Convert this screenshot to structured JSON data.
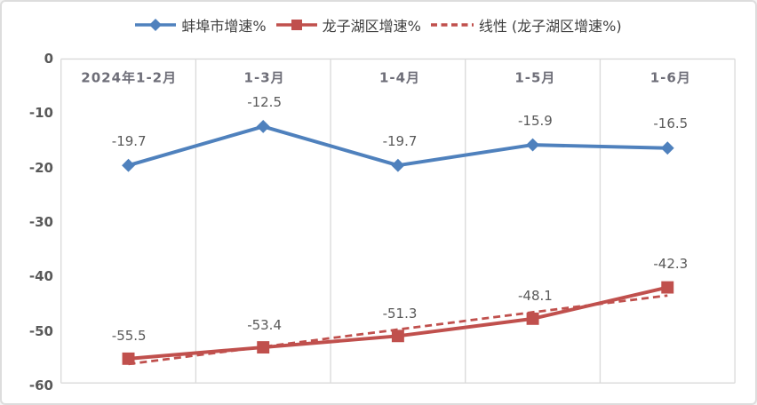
{
  "chart_data": {
    "type": "line",
    "title": "",
    "categories": [
      "2024年1-2月",
      "1-3月",
      "1-4月",
      "1-5月",
      "1-6月"
    ],
    "series": [
      {
        "name": "蚌埠市增速%",
        "color": "#4f81bd",
        "marker": "diamond",
        "values": [
          -19.7,
          -12.5,
          -19.7,
          -15.9,
          -16.5
        ]
      },
      {
        "name": "龙子湖区增速%",
        "color": "#c0504d",
        "marker": "square",
        "values": [
          -55.5,
          -53.4,
          -51.3,
          -48.1,
          -42.3
        ]
      }
    ],
    "trendline": {
      "name": "线性 (龙子湖区增速%)",
      "color": "#c0504d",
      "style": "dashed",
      "basis_series": "龙子湖区增速%",
      "values": [
        -56.5,
        -53.3,
        -50.1,
        -46.9,
        -43.8
      ]
    },
    "y_axis": {
      "min": -60,
      "max": 0,
      "ticks": [
        0,
        -10,
        -20,
        -30,
        -40,
        -50,
        -60
      ]
    },
    "grid": "vertical-only",
    "legend_position": "top",
    "data_labels": true,
    "colors": {
      "grid": "#d9d9d9",
      "border": "#dddddd",
      "data_label_text": "#595959",
      "axis_text": "#595959",
      "category_text": "#6e6e78",
      "legend_text": "#3f3f3f"
    }
  }
}
